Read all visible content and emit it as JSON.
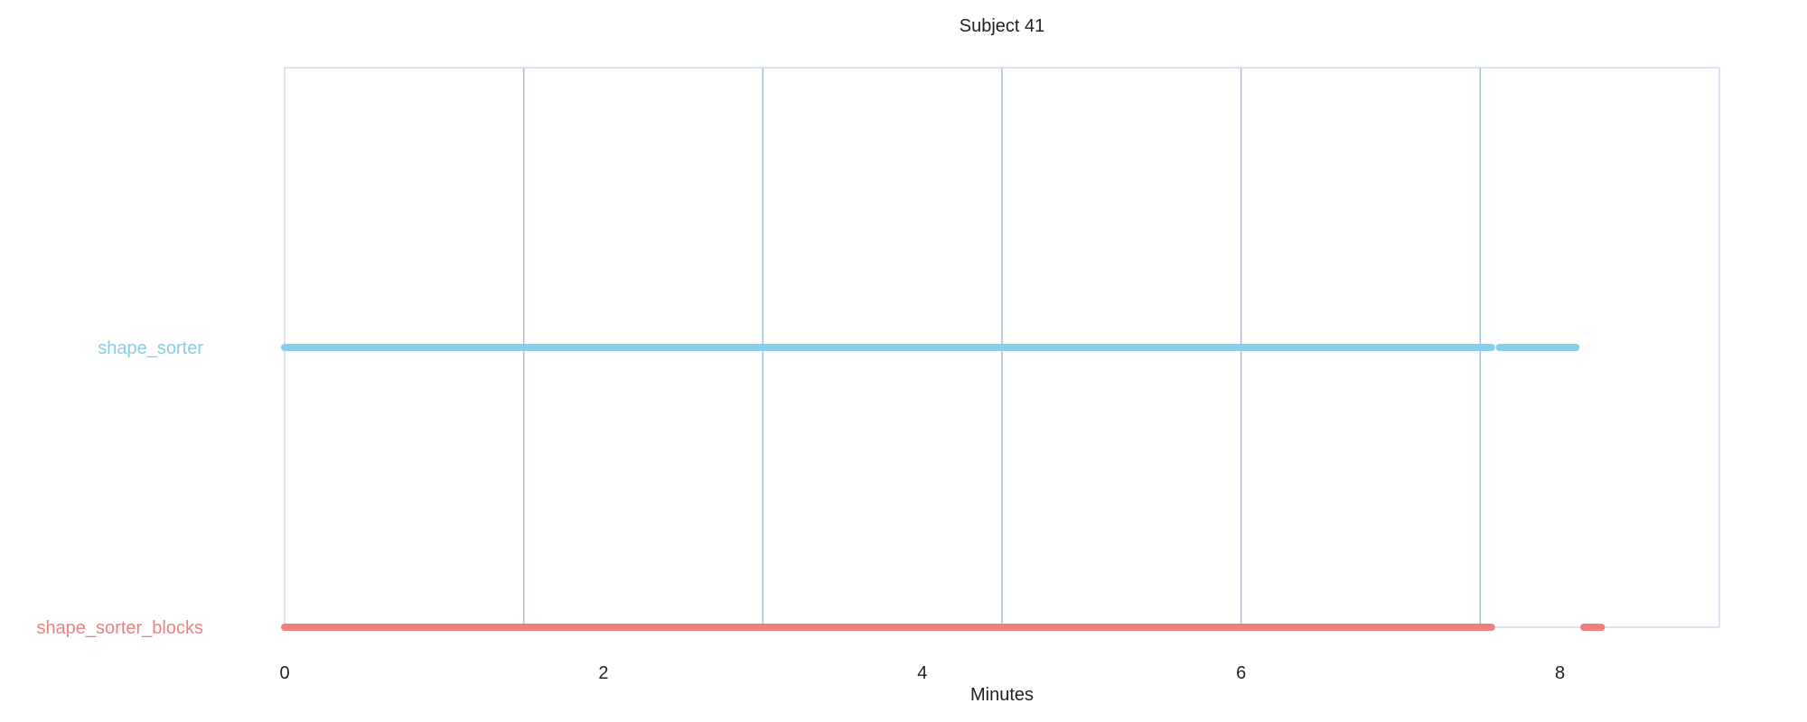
{
  "chart_data": {
    "type": "timeline",
    "title": "Subject 41",
    "xlabel": "Minutes",
    "ylabel": "",
    "xlim": [
      0,
      9
    ],
    "xticks": [
      0,
      2,
      4,
      6,
      8
    ],
    "xtick_labels": [
      "0",
      "2",
      "4",
      "6",
      "8"
    ],
    "gridlines_x": [
      0,
      1.5,
      3,
      4.5,
      6,
      7.5,
      9
    ],
    "grid": true,
    "legend": "none",
    "categories": [
      "shape_sorter",
      "shape_sorter_blocks"
    ],
    "series": [
      {
        "name": "shape_sorter",
        "color": "#87CEEB",
        "segments": [
          [
            0,
            7.57
          ],
          [
            7.62,
            8.1
          ]
        ]
      },
      {
        "name": "shape_sorter_blocks",
        "color": "#F08080",
        "segments": [
          [
            0,
            7.57
          ],
          [
            8.15,
            8.26
          ]
        ]
      }
    ]
  }
}
